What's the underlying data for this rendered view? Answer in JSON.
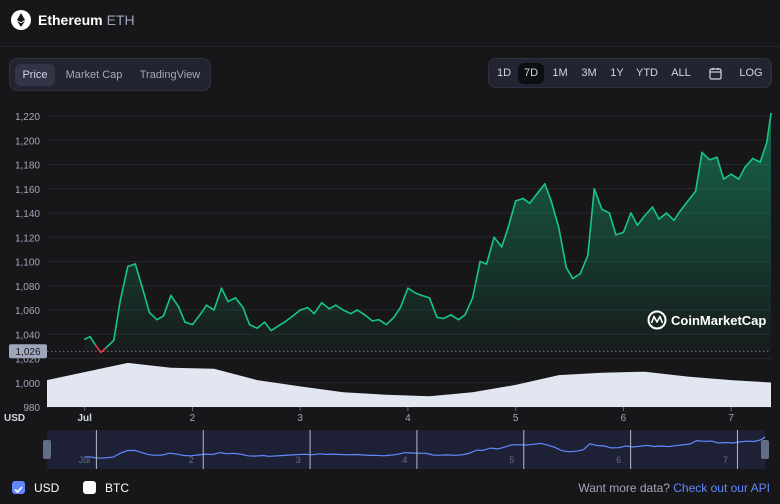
{
  "header": {
    "coin_name": "Ethereum",
    "coin_symbol": "ETH",
    "logo_icon": "ethereum-logo-icon"
  },
  "tabs": [
    {
      "label": "Price",
      "active": true
    },
    {
      "label": "Market Cap",
      "active": false
    },
    {
      "label": "TradingView",
      "active": false
    }
  ],
  "ranges": [
    {
      "label": "1D",
      "active": false
    },
    {
      "label": "7D",
      "active": true
    },
    {
      "label": "1M",
      "active": false
    },
    {
      "label": "3M",
      "active": false
    },
    {
      "label": "1Y",
      "active": false
    },
    {
      "label": "YTD",
      "active": false
    },
    {
      "label": "ALL",
      "active": false
    },
    {
      "label": "",
      "icon": "calendar-icon",
      "active": false
    },
    {
      "label": "LOG",
      "active": false
    }
  ],
  "colors": {
    "up": "#16c784",
    "down": "#ea3943",
    "accent": "#6188ff",
    "volume": "#e2e6f0"
  },
  "watermark": "CoinMarketCap",
  "chart_data": {
    "type": "line",
    "y_axis_ticks": [
      "1,220",
      "1,200",
      "1,180",
      "1,160",
      "1,140",
      "1,120",
      "1,100",
      "1,080",
      "1,060",
      "1,040",
      "1,020",
      "1,000",
      "980"
    ],
    "y_axis_unit": "USD",
    "x_axis_ticks": [
      "Jul",
      "2",
      "3",
      "4",
      "5",
      "6",
      "7"
    ],
    "ylim": [
      980,
      1225
    ],
    "current_reference_label": "1,026",
    "current_reference_value": 1026,
    "price_series": [
      {
        "x": 0.0,
        "y": 1036
      },
      {
        "x": 0.05,
        "y": 1038
      },
      {
        "x": 0.1,
        "y": 1031
      },
      {
        "x": 0.15,
        "y": 1025
      },
      {
        "x": 0.2,
        "y": 1029
      },
      {
        "x": 0.27,
        "y": 1035
      },
      {
        "x": 0.33,
        "y": 1068
      },
      {
        "x": 0.4,
        "y": 1096
      },
      {
        "x": 0.47,
        "y": 1098
      },
      {
        "x": 0.53,
        "y": 1080
      },
      {
        "x": 0.6,
        "y": 1058
      },
      {
        "x": 0.67,
        "y": 1052
      },
      {
        "x": 0.73,
        "y": 1055
      },
      {
        "x": 0.8,
        "y": 1072
      },
      {
        "x": 0.87,
        "y": 1063
      },
      {
        "x": 0.93,
        "y": 1050
      },
      {
        "x": 1.0,
        "y": 1048
      },
      {
        "x": 1.07,
        "y": 1056
      },
      {
        "x": 1.13,
        "y": 1064
      },
      {
        "x": 1.2,
        "y": 1060
      },
      {
        "x": 1.27,
        "y": 1078
      },
      {
        "x": 1.33,
        "y": 1067
      },
      {
        "x": 1.4,
        "y": 1070
      },
      {
        "x": 1.47,
        "y": 1062
      },
      {
        "x": 1.53,
        "y": 1048
      },
      {
        "x": 1.6,
        "y": 1045
      },
      {
        "x": 1.67,
        "y": 1050
      },
      {
        "x": 1.73,
        "y": 1043
      },
      {
        "x": 1.8,
        "y": 1047
      },
      {
        "x": 1.87,
        "y": 1051
      },
      {
        "x": 1.93,
        "y": 1055
      },
      {
        "x": 2.0,
        "y": 1060
      },
      {
        "x": 2.07,
        "y": 1062
      },
      {
        "x": 2.13,
        "y": 1057
      },
      {
        "x": 2.2,
        "y": 1066
      },
      {
        "x": 2.27,
        "y": 1061
      },
      {
        "x": 2.33,
        "y": 1064
      },
      {
        "x": 2.4,
        "y": 1060
      },
      {
        "x": 2.47,
        "y": 1057
      },
      {
        "x": 2.53,
        "y": 1060
      },
      {
        "x": 2.6,
        "y": 1056
      },
      {
        "x": 2.67,
        "y": 1051
      },
      {
        "x": 2.73,
        "y": 1052
      },
      {
        "x": 2.8,
        "y": 1048
      },
      {
        "x": 2.87,
        "y": 1054
      },
      {
        "x": 2.93,
        "y": 1062
      },
      {
        "x": 3.0,
        "y": 1078
      },
      {
        "x": 3.07,
        "y": 1074
      },
      {
        "x": 3.13,
        "y": 1072
      },
      {
        "x": 3.2,
        "y": 1070
      },
      {
        "x": 3.27,
        "y": 1054
      },
      {
        "x": 3.33,
        "y": 1053
      },
      {
        "x": 3.4,
        "y": 1056
      },
      {
        "x": 3.47,
        "y": 1052
      },
      {
        "x": 3.53,
        "y": 1056
      },
      {
        "x": 3.6,
        "y": 1070
      },
      {
        "x": 3.67,
        "y": 1100
      },
      {
        "x": 3.73,
        "y": 1098
      },
      {
        "x": 3.8,
        "y": 1120
      },
      {
        "x": 3.87,
        "y": 1112
      },
      {
        "x": 3.93,
        "y": 1128
      },
      {
        "x": 4.0,
        "y": 1150
      },
      {
        "x": 4.07,
        "y": 1152
      },
      {
        "x": 4.13,
        "y": 1148
      },
      {
        "x": 4.2,
        "y": 1156
      },
      {
        "x": 4.27,
        "y": 1164
      },
      {
        "x": 4.33,
        "y": 1150
      },
      {
        "x": 4.4,
        "y": 1128
      },
      {
        "x": 4.47,
        "y": 1095
      },
      {
        "x": 4.53,
        "y": 1086
      },
      {
        "x": 4.6,
        "y": 1090
      },
      {
        "x": 4.67,
        "y": 1105
      },
      {
        "x": 4.73,
        "y": 1160
      },
      {
        "x": 4.8,
        "y": 1143
      },
      {
        "x": 4.87,
        "y": 1140
      },
      {
        "x": 4.93,
        "y": 1122
      },
      {
        "x": 5.0,
        "y": 1124
      },
      {
        "x": 5.07,
        "y": 1140
      },
      {
        "x": 5.13,
        "y": 1130
      },
      {
        "x": 5.2,
        "y": 1138
      },
      {
        "x": 5.27,
        "y": 1145
      },
      {
        "x": 5.33,
        "y": 1135
      },
      {
        "x": 5.4,
        "y": 1140
      },
      {
        "x": 5.47,
        "y": 1134
      },
      {
        "x": 5.53,
        "y": 1142
      },
      {
        "x": 5.6,
        "y": 1150
      },
      {
        "x": 5.67,
        "y": 1158
      },
      {
        "x": 5.73,
        "y": 1190
      },
      {
        "x": 5.8,
        "y": 1184
      },
      {
        "x": 5.87,
        "y": 1186
      },
      {
        "x": 5.93,
        "y": 1168
      },
      {
        "x": 6.0,
        "y": 1172
      },
      {
        "x": 6.07,
        "y": 1168
      },
      {
        "x": 6.13,
        "y": 1178
      },
      {
        "x": 6.2,
        "y": 1185
      },
      {
        "x": 6.27,
        "y": 1182
      },
      {
        "x": 6.33,
        "y": 1198
      },
      {
        "x": 6.37,
        "y": 1222
      }
    ],
    "volume_series": [
      {
        "x": 0.0,
        "y": 0.55
      },
      {
        "x": 0.4,
        "y": 0.9
      },
      {
        "x": 0.8,
        "y": 0.8
      },
      {
        "x": 1.2,
        "y": 0.78
      },
      {
        "x": 1.6,
        "y": 0.55
      },
      {
        "x": 2.0,
        "y": 0.42
      },
      {
        "x": 2.4,
        "y": 0.3
      },
      {
        "x": 2.8,
        "y": 0.25
      },
      {
        "x": 3.2,
        "y": 0.22
      },
      {
        "x": 3.6,
        "y": 0.3
      },
      {
        "x": 4.0,
        "y": 0.45
      },
      {
        "x": 4.4,
        "y": 0.65
      },
      {
        "x": 4.8,
        "y": 0.7
      },
      {
        "x": 5.2,
        "y": 0.72
      },
      {
        "x": 5.6,
        "y": 0.62
      },
      {
        "x": 6.0,
        "y": 0.55
      },
      {
        "x": 6.37,
        "y": 0.5
      }
    ]
  },
  "footer": {
    "usd_label": "USD",
    "btc_label": "BTC",
    "api_text": "Want more data?",
    "api_link": "Check out our API"
  }
}
